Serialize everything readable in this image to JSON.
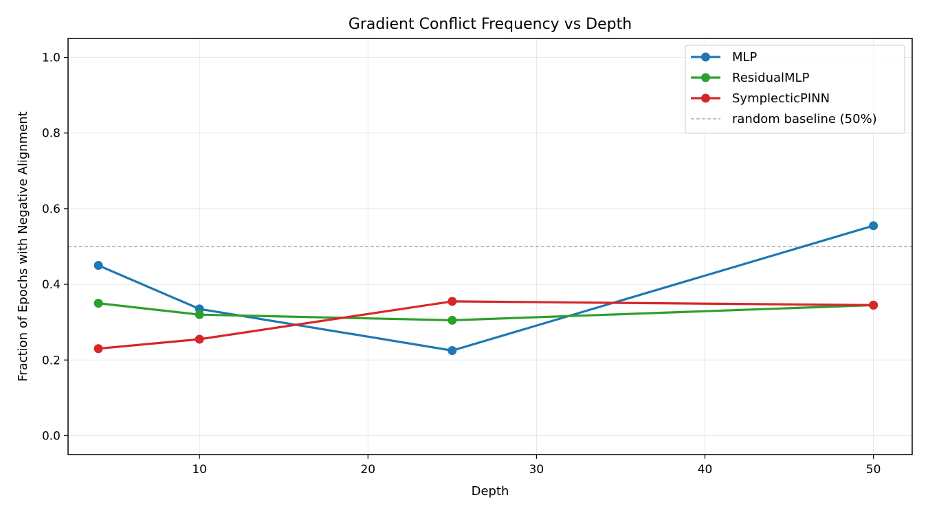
{
  "chart_data": {
    "type": "line",
    "title": "Gradient Conflict Frequency vs Depth",
    "xlabel": "Depth",
    "ylabel": "Fraction of Epochs with Negative Alignment",
    "xlim": [
      2.2,
      52.3
    ],
    "ylim": [
      -0.05,
      1.05
    ],
    "xticks": [
      10,
      20,
      30,
      40,
      50
    ],
    "yticks": [
      0.0,
      0.2,
      0.4,
      0.6,
      0.8,
      1.0
    ],
    "grid": true,
    "legend_position": "top-right",
    "series": [
      {
        "name": "MLP",
        "color": "#1f77b4",
        "x": [
          4,
          10,
          25,
          50
        ],
        "y": [
          0.45,
          0.335,
          0.225,
          0.555
        ]
      },
      {
        "name": "ResidualMLP",
        "color": "#2ca02c",
        "x": [
          4,
          10,
          25,
          50
        ],
        "y": [
          0.35,
          0.32,
          0.305,
          0.345
        ]
      },
      {
        "name": "SymplecticPINN",
        "color": "#d62728",
        "x": [
          4,
          10,
          25,
          50
        ],
        "y": [
          0.23,
          0.255,
          0.355,
          0.345
        ]
      }
    ],
    "reference_line": {
      "name": "random baseline (50%)",
      "y": 0.5,
      "color": "#999999",
      "style": "dashed"
    }
  }
}
